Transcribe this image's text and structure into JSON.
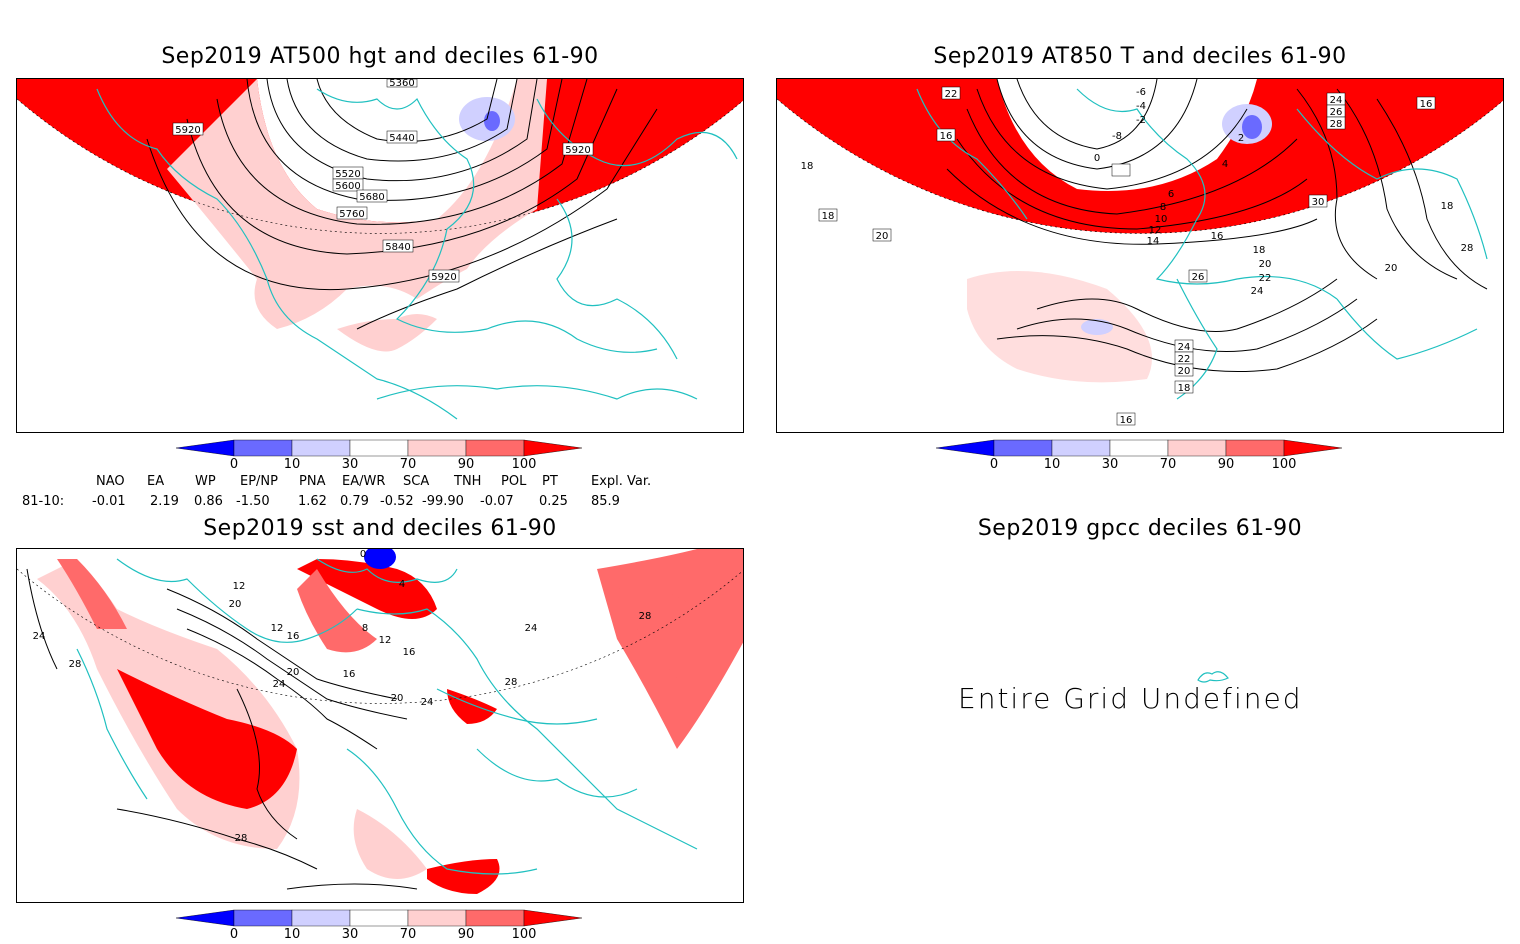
{
  "panels": [
    {
      "title": "Sep2019 AT500 hgt and deciles 61-90",
      "contour_labels": [
        "5360",
        "5440",
        "5520",
        "5600",
        "5680",
        "5760",
        "5840",
        "5920",
        "5920",
        "5920"
      ]
    },
    {
      "title": "Sep2019 AT850 T and deciles 61-90",
      "contour_labels": [
        "-6",
        "-4",
        "-2",
        "-8",
        "0",
        "2",
        "4",
        "6",
        "8",
        "10",
        "12",
        "14",
        "16",
        "18",
        "20",
        "22",
        "24",
        "26",
        "28",
        "30",
        "24",
        "22",
        "20",
        "18",
        "16",
        "16",
        "18",
        "20",
        "18",
        "16",
        "18",
        "20",
        "24",
        "26",
        "28"
      ]
    },
    {
      "title": "Sep2019 sst and deciles 61-90",
      "contour_labels": [
        "0",
        "4",
        "8",
        "12",
        "16",
        "20",
        "24",
        "28",
        "4",
        "8",
        "12",
        "16",
        "20",
        "24",
        "28",
        "24",
        "28"
      ]
    },
    {
      "title": "Sep2019 gpcc deciles 61-90",
      "message": "Entire Grid Undefined"
    }
  ],
  "colorbar": {
    "ticks": [
      "0",
      "10",
      "30",
      "70",
      "90",
      "100"
    ],
    "colors": [
      "#0000ff",
      "#6a6aff",
      "#d0d0ff",
      "#ffffff",
      "#ffd0d0",
      "#ff6a6a",
      "#ff0000"
    ]
  },
  "indices": {
    "headers": [
      "NAO",
      "EA",
      "WP",
      "EP/NP",
      "PNA",
      "EA/WR",
      "SCA",
      "TNH",
      "POL",
      "PT",
      "Expl. Var."
    ],
    "row_label": "81-10:",
    "values": [
      "-0.01",
      "2.19",
      "0.86",
      "-1.50",
      "1.62",
      "0.79",
      "-0.52",
      "-99.90",
      "-0.07",
      "0.25",
      "85.9"
    ]
  },
  "colors": {
    "coast": "#20c0c0",
    "strong_red": "#ff0000",
    "mid_red": "#ff6a6a",
    "light_red": "#ffd0d0",
    "light_blue": "#d0d0ff",
    "mid_blue": "#6a6aff",
    "blue": "#0000ff"
  }
}
